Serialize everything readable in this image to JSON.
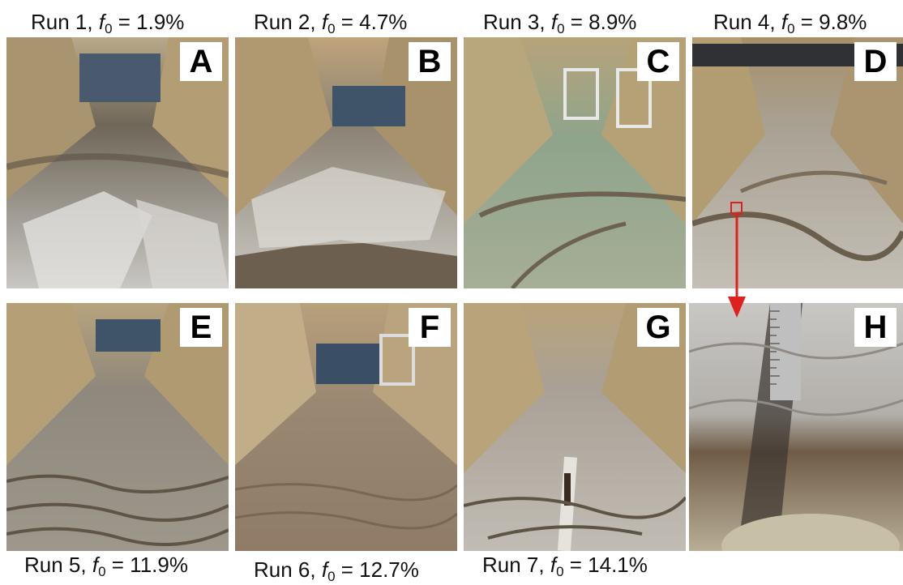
{
  "captions": [
    {
      "id": "A",
      "prefix": "Run 1, ",
      "f": "f",
      "sub": "0",
      "suffix": " = 1.9%"
    },
    {
      "id": "B",
      "prefix": "Run 2, ",
      "f": "f",
      "sub": "0",
      "suffix": " = 4.7%"
    },
    {
      "id": "C",
      "prefix": "Run 3, ",
      "f": "f",
      "sub": "0",
      "suffix": " = 8.9%"
    },
    {
      "id": "D",
      "prefix": "Run 4, ",
      "f": "f",
      "sub": "0",
      "suffix": " = 9.8%"
    },
    {
      "id": "E",
      "prefix": "Run 5, ",
      "f": "f",
      "sub": "0",
      "suffix": " = 11.9%"
    },
    {
      "id": "F",
      "prefix": "Run 6, ",
      "f": "f",
      "sub": "0",
      "suffix": " = 12.7%"
    },
    {
      "id": "G",
      "prefix": "Run 7, ",
      "f": "f",
      "sub": "0",
      "suffix": " = 14.1%"
    }
  ],
  "panels": [
    {
      "letter": "A",
      "description": "flume-photo"
    },
    {
      "letter": "B",
      "description": "flume-photo"
    },
    {
      "letter": "C",
      "description": "flume-photo"
    },
    {
      "letter": "D",
      "description": "flume-photo"
    },
    {
      "letter": "E",
      "description": "flume-photo"
    },
    {
      "letter": "F",
      "description": "flume-photo"
    },
    {
      "letter": "G",
      "description": "flume-photo"
    },
    {
      "letter": "H",
      "description": "zoomed-detail-photo"
    }
  ],
  "colors": {
    "zoom_indicator": "#e0201c",
    "letter_box": "#ffffff"
  }
}
